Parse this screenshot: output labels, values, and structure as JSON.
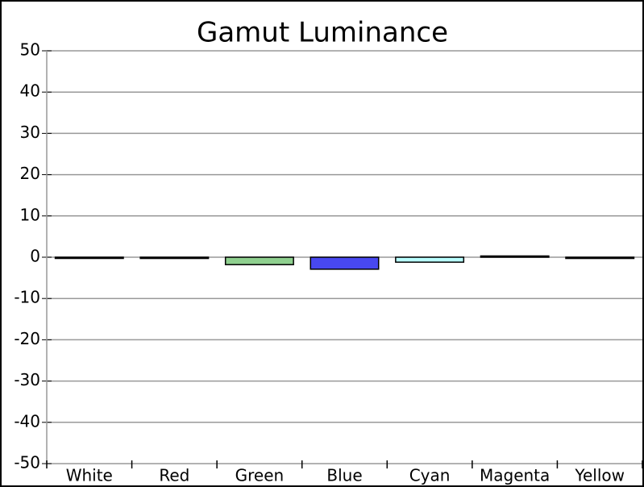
{
  "chart_data": {
    "type": "bar",
    "title": "Gamut Luminance",
    "categories": [
      "White",
      "Red",
      "Green",
      "Blue",
      "Cyan",
      "Magenta",
      "Yellow"
    ],
    "values": [
      -0.1,
      -0.3,
      -1.8,
      -2.9,
      -1.2,
      0.3,
      -0.3
    ],
    "colors": [
      "#000000",
      "#000000",
      "#8fd08f",
      "#4848f0",
      "#b8ffff",
      "#000000",
      "#000000"
    ],
    "ylim": [
      -50,
      50
    ],
    "yticks": [
      -50,
      -40,
      -30,
      -20,
      -10,
      0,
      10,
      20,
      30,
      40,
      50
    ],
    "grid": true
  }
}
